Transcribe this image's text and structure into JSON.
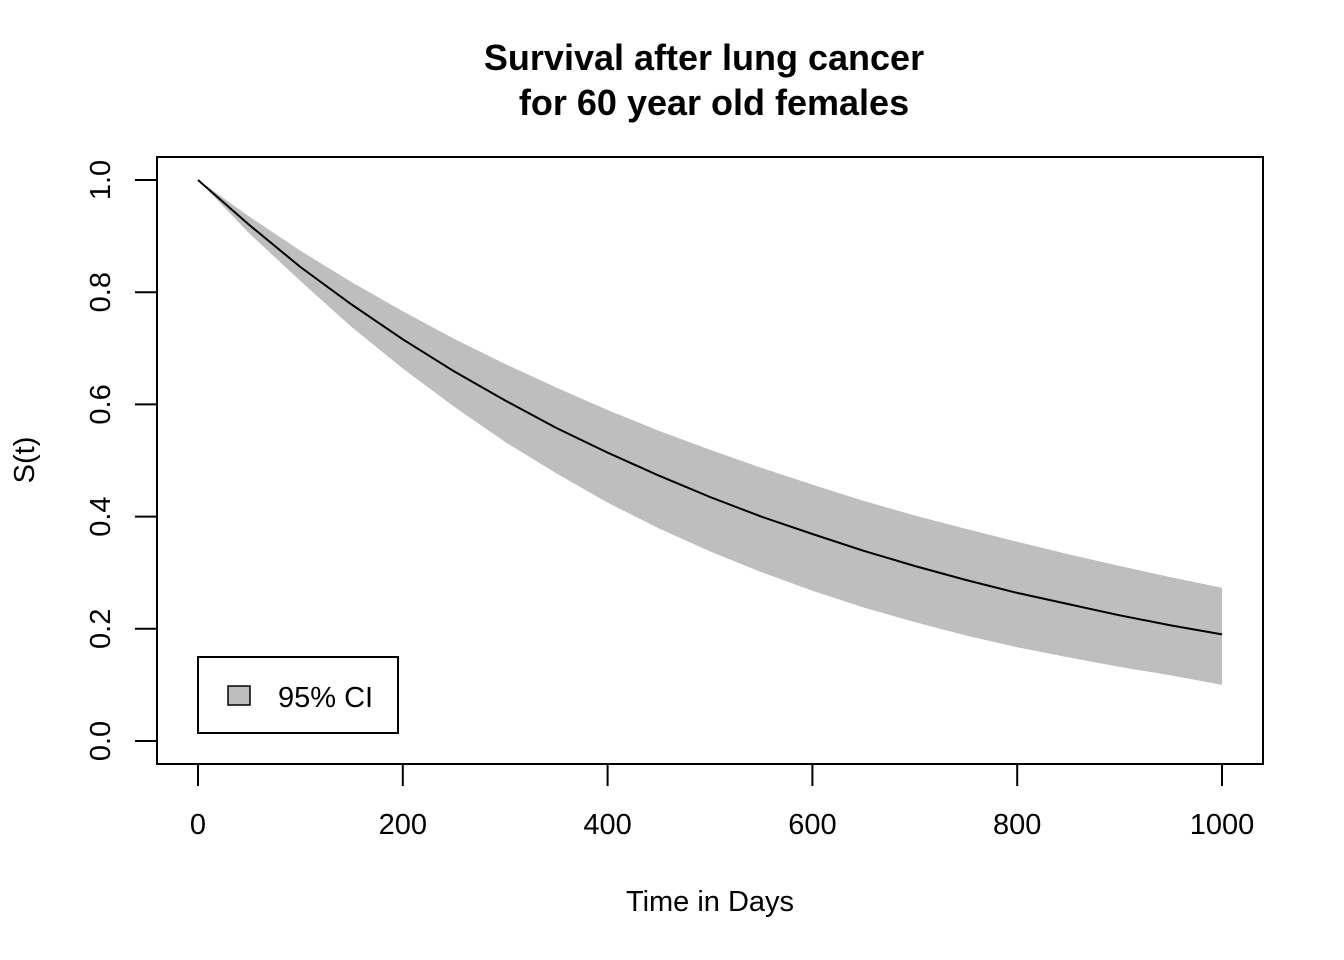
{
  "chart_data": {
    "type": "line",
    "title": [
      "Survival after lung cancer",
      "for 60 year old females"
    ],
    "xlabel": "Time in Days",
    "ylabel": "S(t)",
    "xlim": [
      0,
      1000
    ],
    "ylim": [
      0,
      1
    ],
    "x_ticks": [
      0,
      200,
      400,
      600,
      800,
      1000
    ],
    "x_tick_labels": [
      "0",
      "200",
      "400",
      "600",
      "800",
      "1000"
    ],
    "y_ticks": [
      0,
      0.2,
      0.4,
      0.6,
      0.8,
      1.0
    ],
    "y_tick_labels": [
      "0.0",
      "0.2",
      "0.4",
      "0.6",
      "0.8",
      "1.0"
    ],
    "grid": false,
    "x": [
      0,
      50,
      100,
      150,
      200,
      250,
      300,
      350,
      400,
      450,
      500,
      550,
      600,
      650,
      700,
      750,
      800,
      850,
      900,
      950,
      1000
    ],
    "series": [
      {
        "values": [
          1.0,
          0.92,
          0.845,
          0.778,
          0.716,
          0.659,
          0.607,
          0.558,
          0.514,
          0.473,
          0.435,
          0.4,
          0.369,
          0.339,
          0.312,
          0.287,
          0.264,
          0.244,
          0.224,
          0.206,
          0.19
        ],
        "color": "#000000"
      }
    ],
    "ci_band": {
      "name": "95% CI",
      "color": "#bebebe",
      "lower": [
        1.0,
        0.905,
        0.82,
        0.738,
        0.664,
        0.596,
        0.533,
        0.477,
        0.425,
        0.379,
        0.338,
        0.301,
        0.268,
        0.238,
        0.212,
        0.188,
        0.167,
        0.149,
        0.132,
        0.117,
        0.1
      ],
      "upper": [
        1.0,
        0.935,
        0.874,
        0.818,
        0.766,
        0.717,
        0.672,
        0.63,
        0.59,
        0.553,
        0.519,
        0.487,
        0.457,
        0.428,
        0.402,
        0.378,
        0.355,
        0.333,
        0.312,
        0.292,
        0.273
      ]
    },
    "legend": {
      "position": "bottom-left",
      "entries": [
        "95% CI"
      ]
    }
  }
}
